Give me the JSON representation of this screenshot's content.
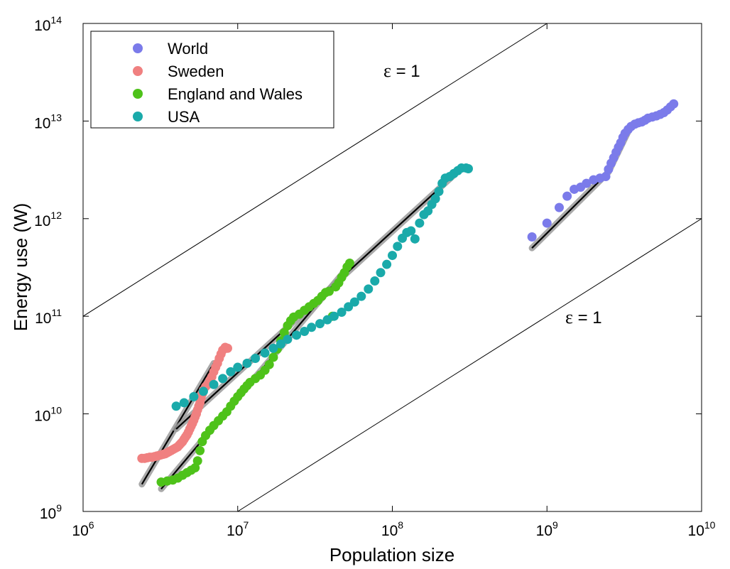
{
  "chart_data": {
    "type": "scatter",
    "xlabel": "Population size",
    "ylabel": "Energy use (W)",
    "x_scale": "log",
    "y_scale": "log",
    "xlim": [
      1000000,
      10000000000
    ],
    "ylim": [
      1000000000,
      100000000000000
    ],
    "x_ticks": [
      {
        "base": "10",
        "exp": "6",
        "value": 1000000
      },
      {
        "base": "10",
        "exp": "7",
        "value": 10000000
      },
      {
        "base": "10",
        "exp": "8",
        "value": 100000000
      },
      {
        "base": "10",
        "exp": "9",
        "value": 1000000000
      },
      {
        "base": "10",
        "exp": "10",
        "value": 10000000000
      }
    ],
    "y_ticks": [
      {
        "base": "10",
        "exp": "9",
        "value": 1000000000
      },
      {
        "base": "10",
        "exp": "10",
        "value": 10000000000
      },
      {
        "base": "10",
        "exp": "11",
        "value": 100000000000
      },
      {
        "base": "10",
        "exp": "12",
        "value": 1000000000000
      },
      {
        "base": "10",
        "exp": "13",
        "value": 10000000000000
      },
      {
        "base": "10",
        "exp": "14",
        "value": 100000000000000
      }
    ],
    "grid": false,
    "legend_position": "top-left",
    "series": [
      {
        "name": "World",
        "color": "#7b7bea",
        "points": [
          [
            800000000,
            650000000000
          ],
          [
            1000000000,
            900000000000
          ],
          [
            1200000000,
            1300000000000
          ],
          [
            1350000000,
            1700000000000
          ],
          [
            1500000000,
            2000000000000
          ],
          [
            1650000000,
            2100000000000
          ],
          [
            1800000000,
            2300000000000
          ],
          [
            2000000000,
            2500000000000
          ],
          [
            2200000000,
            2600000000000
          ],
          [
            2400000000,
            2700000000000
          ],
          [
            2500000000,
            3200000000000
          ],
          [
            2600000000,
            3700000000000
          ],
          [
            2700000000,
            4200000000000
          ],
          [
            2800000000,
            4800000000000
          ],
          [
            2900000000,
            5400000000000
          ],
          [
            3000000000,
            6000000000000
          ],
          [
            3100000000,
            6800000000000
          ],
          [
            3200000000,
            7500000000000
          ],
          [
            3350000000,
            8200000000000
          ],
          [
            3500000000,
            8800000000000
          ],
          [
            3700000000,
            9300000000000
          ],
          [
            3900000000,
            9600000000000
          ],
          [
            4100000000,
            9800000000000
          ],
          [
            4300000000,
            10200000000000
          ],
          [
            4500000000,
            10700000000000
          ],
          [
            4800000000,
            11000000000000
          ],
          [
            5100000000,
            11300000000000
          ],
          [
            5400000000,
            11700000000000
          ],
          [
            5700000000,
            12200000000000
          ],
          [
            6000000000,
            13000000000000
          ],
          [
            6300000000,
            14000000000000
          ],
          [
            6600000000,
            15000000000000
          ]
        ],
        "fit": [
          [
            800000000,
            500000000000
          ],
          [
            2500000000,
            3000000000000
          ],
          [
            3500000000,
            9000000000000
          ]
        ]
      },
      {
        "name": "Sweden",
        "color": "#f08080",
        "points": [
          [
            2400000,
            3500000000
          ],
          [
            2500000,
            3500000000
          ],
          [
            2600000,
            3550000000
          ],
          [
            2700000,
            3600000000
          ],
          [
            2800000,
            3600000000
          ],
          [
            2900000,
            3650000000
          ],
          [
            3000000,
            3700000000
          ],
          [
            3100000,
            3750000000
          ],
          [
            3200000,
            3800000000
          ],
          [
            3300000,
            3850000000
          ],
          [
            3400000,
            3900000000
          ],
          [
            3500000,
            4000000000
          ],
          [
            3600000,
            4100000000
          ],
          [
            3700000,
            4200000000
          ],
          [
            3800000,
            4300000000
          ],
          [
            3900000,
            4400000000
          ],
          [
            4000000,
            4500000000
          ],
          [
            4100000,
            4600000000
          ],
          [
            4200000,
            4800000000
          ],
          [
            4300000,
            5000000000
          ],
          [
            4400000,
            5200000000
          ],
          [
            4500000,
            5500000000
          ],
          [
            4600000,
            5800000000
          ],
          [
            4700000,
            6100000000
          ],
          [
            4800000,
            6500000000
          ],
          [
            4900000,
            7000000000
          ],
          [
            5000000,
            7500000000
          ],
          [
            5100000,
            8000000000
          ],
          [
            5200000,
            8600000000
          ],
          [
            5300000,
            9300000000
          ],
          [
            5400000,
            10000000000
          ],
          [
            5500000,
            11000000000
          ],
          [
            5600000,
            12000000000
          ],
          [
            5700000,
            13000000000
          ],
          [
            5800000,
            14500000000
          ],
          [
            5900000,
            16000000000
          ],
          [
            6000000,
            17500000000
          ],
          [
            6200000,
            19000000000
          ],
          [
            6400000,
            20000000000
          ],
          [
            6600000,
            22000000000
          ],
          [
            6800000,
            24000000000
          ],
          [
            7000000,
            27000000000
          ],
          [
            7200000,
            30000000000
          ],
          [
            7400000,
            33000000000
          ],
          [
            7600000,
            37000000000
          ],
          [
            7800000,
            41000000000
          ],
          [
            8000000,
            45000000000
          ],
          [
            8300000,
            48000000000
          ],
          [
            8600000,
            47000000000
          ]
        ],
        "fit": [
          [
            2400000,
            1900000000
          ],
          [
            7000000,
            33000000000
          ]
        ]
      },
      {
        "name": "England and Wales",
        "color": "#4ec21a",
        "points": [
          [
            3200000,
            2000000000
          ],
          [
            3500000,
            2050000000
          ],
          [
            3800000,
            2100000000
          ],
          [
            4100000,
            2200000000
          ],
          [
            4400000,
            2350000000
          ],
          [
            4700000,
            2500000000
          ],
          [
            5000000,
            2650000000
          ],
          [
            5300000,
            2800000000
          ],
          [
            5500000,
            3300000000
          ],
          [
            5700000,
            4200000000
          ],
          [
            5900000,
            5200000000
          ],
          [
            6200000,
            6000000000
          ],
          [
            6600000,
            6800000000
          ],
          [
            7000000,
            7600000000
          ],
          [
            7500000,
            8500000000
          ],
          [
            8000000,
            9500000000
          ],
          [
            8500000,
            10500000000
          ],
          [
            9000000,
            12000000000
          ],
          [
            9500000,
            13500000000
          ],
          [
            10000000,
            15000000000
          ],
          [
            10500000,
            16500000000
          ],
          [
            11000000,
            18000000000
          ],
          [
            11500000,
            19500000000
          ],
          [
            12000000,
            21000000000
          ],
          [
            13000000,
            23000000000
          ],
          [
            14000000,
            25000000000
          ],
          [
            15000000,
            28000000000
          ],
          [
            16000000,
            32000000000
          ],
          [
            17000000,
            38000000000
          ],
          [
            18000000,
            46000000000
          ],
          [
            19000000,
            56000000000
          ],
          [
            20000000,
            68000000000
          ],
          [
            21000000,
            80000000000
          ],
          [
            22000000,
            90000000000
          ],
          [
            23000000,
            98000000000
          ],
          [
            25000000,
            105000000000
          ],
          [
            27000000,
            115000000000
          ],
          [
            29000000,
            125000000000
          ],
          [
            31000000,
            135000000000
          ],
          [
            33000000,
            145000000000
          ],
          [
            35000000,
            160000000000
          ],
          [
            37000000,
            175000000000
          ],
          [
            39000000,
            180000000000
          ],
          [
            41000000,
            100000000000
          ],
          [
            43000000,
            200000000000
          ],
          [
            45000000,
            220000000000
          ],
          [
            47000000,
            250000000000
          ],
          [
            49000000,
            280000000000
          ],
          [
            51000000,
            320000000000
          ],
          [
            53000000,
            350000000000
          ]
        ],
        "fit": [
          [
            3200000,
            1700000000
          ],
          [
            50000000,
            300000000000
          ]
        ]
      },
      {
        "name": "USA",
        "color": "#1aaaaa",
        "points": [
          [
            4000000,
            12000000000
          ],
          [
            4500000,
            13000000000
          ],
          [
            5200000,
            15000000000
          ],
          [
            6000000,
            17000000000
          ],
          [
            7000000,
            20000000000
          ],
          [
            8000000,
            23000000000
          ],
          [
            9000000,
            27000000000
          ],
          [
            10000000,
            30000000000
          ],
          [
            11500000,
            33000000000
          ],
          [
            13000000,
            37000000000
          ],
          [
            15000000,
            42000000000
          ],
          [
            17000000,
            47000000000
          ],
          [
            19000000,
            52000000000
          ],
          [
            21000000,
            58000000000
          ],
          [
            24000000,
            64000000000
          ],
          [
            27000000,
            70000000000
          ],
          [
            30000000,
            77000000000
          ],
          [
            34000000,
            84000000000
          ],
          [
            38000000,
            92000000000
          ],
          [
            42000000,
            100000000000
          ],
          [
            47000000,
            110000000000
          ],
          [
            52000000,
            125000000000
          ],
          [
            57000000,
            140000000000
          ],
          [
            63000000,
            160000000000
          ],
          [
            70000000,
            190000000000
          ],
          [
            77000000,
            230000000000
          ],
          [
            84000000,
            280000000000
          ],
          [
            92000000,
            340000000000
          ],
          [
            100000000,
            420000000000
          ],
          [
            108000000,
            520000000000
          ],
          [
            116000000,
            630000000000
          ],
          [
            124000000,
            720000000000
          ],
          [
            132000000,
            750000000000
          ],
          [
            140000000,
            620000000000
          ],
          [
            150000000,
            900000000000
          ],
          [
            160000000,
            1100000000000
          ],
          [
            170000000,
            1200000000000
          ],
          [
            180000000,
            1400000000000
          ],
          [
            190000000,
            1600000000000
          ],
          [
            200000000,
            1900000000000
          ],
          [
            210000000,
            2300000000000
          ],
          [
            220000000,
            2600000000000
          ],
          [
            235000000,
            2700000000000
          ],
          [
            250000000,
            2900000000000
          ],
          [
            265000000,
            3100000000000
          ],
          [
            280000000,
            3300000000000
          ],
          [
            300000000,
            3300000000000
          ],
          [
            310000000,
            3250000000000
          ]
        ],
        "fit": [
          [
            4000000,
            7000000000
          ],
          [
            250000000,
            2800000000000
          ]
        ]
      }
    ],
    "reference_lines": [
      {
        "label": "ε = 1",
        "points": [
          [
            1000000,
            100000000000
          ],
          [
            1000000000,
            100000000000000
          ]
        ]
      },
      {
        "label": "ε = 1",
        "points": [
          [
            10000000,
            1000000000
          ],
          [
            10000000000,
            1000000000000
          ]
        ]
      }
    ]
  },
  "annotations": {
    "upper_eps_symbol": "ε",
    "upper_eps_rest": " = 1",
    "lower_eps_symbol": "ε",
    "lower_eps_rest": " = 1"
  }
}
